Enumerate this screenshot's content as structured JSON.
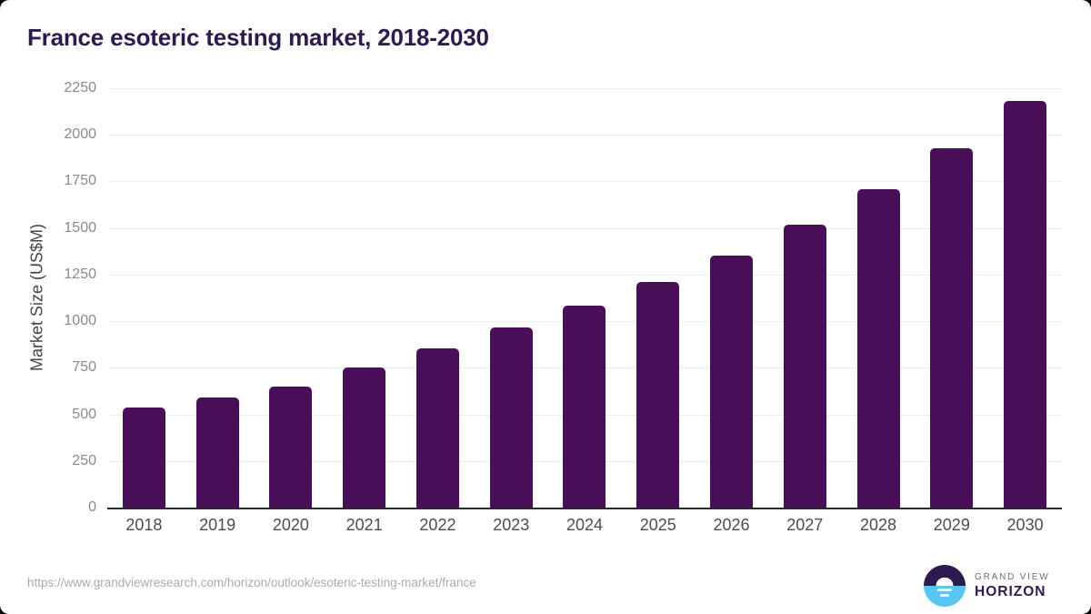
{
  "page": {
    "title": "France esoteric testing market, 2018-2030",
    "source_url": "https://www.grandviewresearch.com/horizon/outlook/esoteric-testing-market/france"
  },
  "logo": {
    "brand_top": "GRAND VIEW",
    "brand_bottom": "HORIZON"
  },
  "colors": {
    "bar": "#480e58",
    "title": "#2e1b4e",
    "axis": "#2a2a2a",
    "grid": "#ececee",
    "logo-purple": "#2e1b4e",
    "logo-blue": "#58c6f0"
  },
  "chart_data": {
    "type": "bar",
    "title": "France esoteric testing market, 2018-2030",
    "xlabel": "",
    "ylabel": "Market Size (US$M)",
    "categories": [
      "2018",
      "2019",
      "2020",
      "2021",
      "2022",
      "2023",
      "2024",
      "2025",
      "2026",
      "2027",
      "2028",
      "2029",
      "2030"
    ],
    "values": [
      535,
      590,
      650,
      750,
      855,
      965,
      1085,
      1210,
      1350,
      1520,
      1710,
      1930,
      2180
    ],
    "ylim": [
      0,
      2250
    ],
    "yticks": [
      0,
      250,
      500,
      750,
      1000,
      1250,
      1500,
      1750,
      2000,
      2250
    ],
    "grid": "horizontal",
    "legend": "none"
  }
}
